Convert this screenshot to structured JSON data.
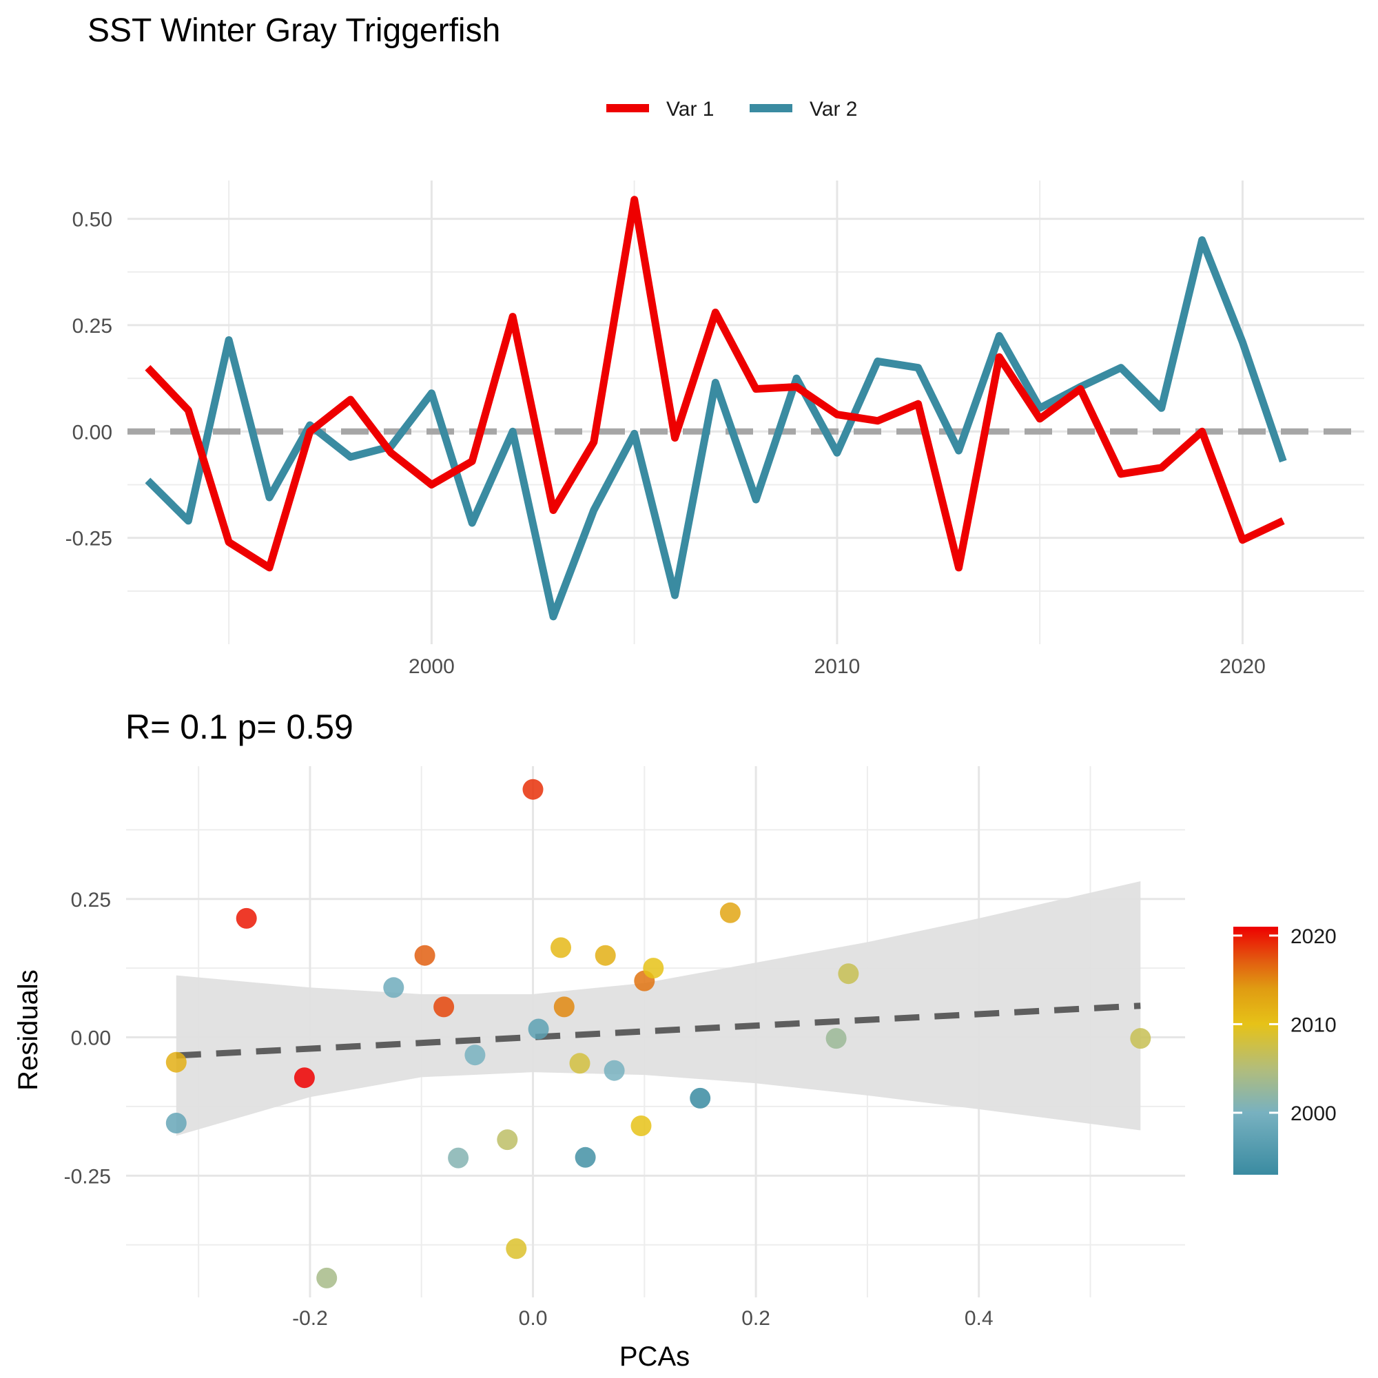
{
  "title": "SST Winter Gray Triggerfish",
  "colors": {
    "var1": "#ee0000",
    "var2": "#3a8ba1",
    "zero_line": "#a6a6a6",
    "fit_line": "#5e5e5e",
    "ribbon": "#e0e0e0"
  },
  "chart_data": [
    {
      "type": "line",
      "legend_position": "top",
      "grid": true,
      "x_ticks": [
        2000,
        2010,
        2020
      ],
      "y_ticks": [
        -0.25,
        0.0,
        0.25,
        0.5
      ],
      "y_tick_labels": [
        "-0.25",
        "0.00",
        "0.25",
        "0.50"
      ],
      "xlim": [
        1992.5,
        2023
      ],
      "ylim": [
        -0.5,
        0.59
      ],
      "reference_line": 0,
      "x": [
        1993,
        1994,
        1995,
        1996,
        1997,
        1998,
        1999,
        2000,
        2001,
        2002,
        2003,
        2004,
        2005,
        2006,
        2007,
        2008,
        2009,
        2010,
        2011,
        2012,
        2013,
        2014,
        2015,
        2016,
        2017,
        2018,
        2019,
        2020,
        2021
      ],
      "series": [
        {
          "name": "Var 1",
          "color_key": "var1",
          "values": [
            0.15,
            0.05,
            -0.26,
            -0.32,
            0.0,
            0.075,
            -0.05,
            -0.125,
            -0.07,
            0.27,
            -0.185,
            -0.025,
            0.545,
            -0.015,
            0.28,
            0.1,
            0.105,
            0.04,
            0.025,
            0.065,
            -0.32,
            0.175,
            0.03,
            0.1,
            -0.1,
            -0.085,
            0.0,
            -0.255,
            -0.21
          ]
        },
        {
          "name": "Var 2",
          "color_key": "var2",
          "values": [
            -0.115,
            -0.21,
            0.215,
            -0.155,
            0.015,
            -0.06,
            -0.035,
            0.09,
            -0.215,
            0.0,
            -0.435,
            -0.185,
            -0.005,
            -0.385,
            0.115,
            -0.16,
            0.125,
            -0.05,
            0.165,
            0.15,
            -0.045,
            0.225,
            0.055,
            0.105,
            0.15,
            0.055,
            0.45,
            0.21,
            -0.07
          ]
        }
      ]
    },
    {
      "type": "scatter",
      "subtitle": "R= 0.1  p= 0.59",
      "xlabel": "PCAs",
      "ylabel": "Residuals",
      "grid": true,
      "x_ticks": [
        -0.2,
        0.0,
        0.2,
        0.4
      ],
      "x_tick_labels": [
        "-0.2",
        "0.0",
        "0.2",
        "0.4"
      ],
      "y_ticks": [
        -0.25,
        0.0,
        0.25
      ],
      "y_tick_labels": [
        "-0.25",
        "0.00",
        "0.25"
      ],
      "xlim": [
        -0.365,
        0.585
      ],
      "ylim": [
        -0.47,
        0.49
      ],
      "fit": {
        "x": [
          -0.32,
          0.545
        ],
        "y": [
          -0.033,
          0.057
        ],
        "ribbon": {
          "x": [
            -0.32,
            -0.2,
            -0.1,
            0.0,
            0.1,
            0.2,
            0.3,
            0.4,
            0.545
          ],
          "upper": [
            0.112,
            0.09,
            0.078,
            0.078,
            0.098,
            0.135,
            0.172,
            0.215,
            0.282
          ],
          "lower": [
            -0.178,
            -0.108,
            -0.072,
            -0.063,
            -0.068,
            -0.083,
            -0.105,
            -0.13,
            -0.168
          ]
        }
      },
      "colorbar": {
        "title": "",
        "range": [
          1993,
          2021
        ],
        "ticks": [
          2000,
          2010,
          2020
        ],
        "stops": [
          {
            "value": 1993,
            "color": "#3a8ba1"
          },
          {
            "value": 2000,
            "color": "#78b1c0"
          },
          {
            "value": 2005,
            "color": "#b3bd7a"
          },
          {
            "value": 2010,
            "color": "#e6c218"
          },
          {
            "value": 2014,
            "color": "#e09c12"
          },
          {
            "value": 2017,
            "color": "#e25f10"
          },
          {
            "value": 2021,
            "color": "#ee0000"
          }
        ]
      },
      "points": [
        {
          "x": -0.32,
          "y": -0.045,
          "year": 2012
        },
        {
          "x": -0.32,
          "y": -0.155,
          "year": 1998
        },
        {
          "x": -0.257,
          "y": 0.215,
          "year": 2020
        },
        {
          "x": -0.205,
          "y": -0.073,
          "year": 2021
        },
        {
          "x": -0.185,
          "y": -0.435,
          "year": 2004
        },
        {
          "x": -0.125,
          "y": 0.09,
          "year": 1999
        },
        {
          "x": -0.097,
          "y": 0.148,
          "year": 2017
        },
        {
          "x": -0.08,
          "y": 0.055,
          "year": 2018
        },
        {
          "x": -0.067,
          "y": -0.218,
          "year": 2001
        },
        {
          "x": -0.052,
          "y": -0.032,
          "year": 2000
        },
        {
          "x": -0.023,
          "y": -0.185,
          "year": 2006
        },
        {
          "x": -0.015,
          "y": -0.382,
          "year": 2009
        },
        {
          "x": 0.0,
          "y": 0.448,
          "year": 2019
        },
        {
          "x": 0.005,
          "y": 0.015,
          "year": 1997
        },
        {
          "x": 0.025,
          "y": 0.162,
          "year": 2011
        },
        {
          "x": 0.028,
          "y": 0.055,
          "year": 2015
        },
        {
          "x": 0.042,
          "y": -0.047,
          "year": 2008
        },
        {
          "x": 0.047,
          "y": -0.217,
          "year": 1994
        },
        {
          "x": 0.065,
          "y": 0.148,
          "year": 2012
        },
        {
          "x": 0.073,
          "y": -0.06,
          "year": 2000
        },
        {
          "x": 0.097,
          "y": -0.16,
          "year": 2010
        },
        {
          "x": 0.1,
          "y": 0.102,
          "year": 2016
        },
        {
          "x": 0.108,
          "y": 0.125,
          "year": 2010
        },
        {
          "x": 0.15,
          "y": -0.11,
          "year": 1993
        },
        {
          "x": 0.177,
          "y": 0.225,
          "year": 2013
        },
        {
          "x": 0.272,
          "y": -0.002,
          "year": 2003
        },
        {
          "x": 0.283,
          "y": 0.115,
          "year": 2007
        },
        {
          "x": 0.545,
          "y": -0.002,
          "year": 2007
        }
      ]
    }
  ]
}
